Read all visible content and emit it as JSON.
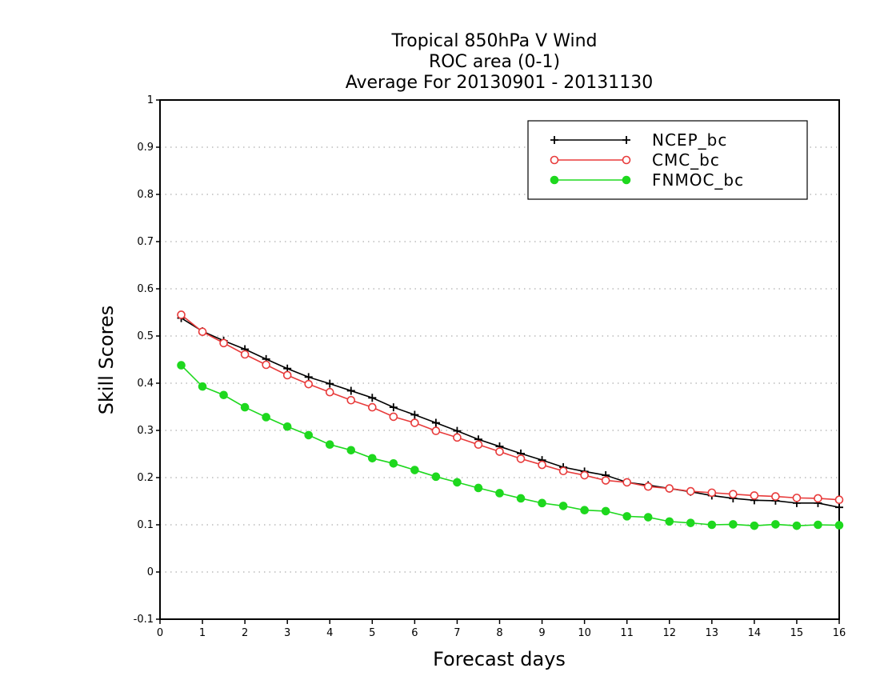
{
  "chart_data": {
    "type": "line",
    "title_lines": [
      "Tropical 850hPa V Wind",
      "ROC area (0-1)",
      "Average For 20130901 - 20131130"
    ],
    "xlabel": "Forecast days",
    "ylabel": "Skill Scores",
    "xlim": [
      0,
      16
    ],
    "ylim": [
      -0.1,
      1
    ],
    "x_ticks": [
      "0",
      "1",
      "2",
      "3",
      "4",
      "5",
      "6",
      "7",
      "8",
      "9",
      "10",
      "11",
      "12",
      "13",
      "14",
      "15",
      "16"
    ],
    "y_ticks": [
      "-0.1",
      "0",
      "0.1",
      "0.2",
      "0.3",
      "0.4",
      "0.5",
      "0.6",
      "0.7",
      "0.8",
      "0.9",
      "1"
    ],
    "grid": "horizontal-dotted",
    "legend_position": "top-right",
    "x": [
      0.5,
      1,
      1.5,
      2,
      2.5,
      3,
      3.5,
      4,
      4.5,
      5,
      5.5,
      6,
      6.5,
      7,
      7.5,
      8,
      8.5,
      9,
      9.5,
      10,
      10.5,
      11,
      11.5,
      12,
      12.5,
      13,
      13.5,
      14,
      14.5,
      15,
      15.5,
      16
    ],
    "series": [
      {
        "name": "NCEP_bc",
        "color": "#000000",
        "marker": "plus",
        "values": [
          0.538,
          0.51,
          0.49,
          0.472,
          0.451,
          0.431,
          0.413,
          0.399,
          0.384,
          0.369,
          0.349,
          0.333,
          0.316,
          0.299,
          0.281,
          0.266,
          0.251,
          0.237,
          0.222,
          0.213,
          0.205,
          0.19,
          0.184,
          0.177,
          0.17,
          0.162,
          0.156,
          0.152,
          0.151,
          0.146,
          0.146,
          0.137
        ]
      },
      {
        "name": "CMC_bc",
        "color": "#e83b3b",
        "marker": "open-circle",
        "values": [
          0.545,
          0.509,
          0.485,
          0.461,
          0.439,
          0.417,
          0.398,
          0.381,
          0.364,
          0.349,
          0.329,
          0.316,
          0.299,
          0.285,
          0.27,
          0.255,
          0.24,
          0.227,
          0.214,
          0.205,
          0.194,
          0.19,
          0.181,
          0.177,
          0.171,
          0.168,
          0.165,
          0.162,
          0.16,
          0.157,
          0.156,
          0.153
        ]
      },
      {
        "name": "FNMOC_bc",
        "color": "#1ed81e",
        "marker": "filled-circle",
        "values": [
          0.438,
          0.393,
          0.375,
          0.349,
          0.328,
          0.308,
          0.29,
          0.27,
          0.258,
          0.241,
          0.23,
          0.216,
          0.202,
          0.19,
          0.178,
          0.167,
          0.156,
          0.146,
          0.14,
          0.131,
          0.129,
          0.118,
          0.116,
          0.107,
          0.104,
          0.1,
          0.101,
          0.098,
          0.101,
          0.098,
          0.1,
          0.099
        ]
      }
    ]
  }
}
